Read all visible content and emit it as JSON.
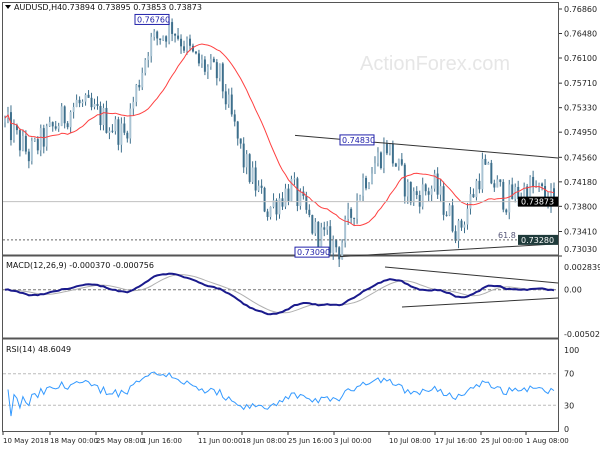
{
  "header": {
    "symbol": "AUDUSD,H4",
    "ohlc": "0.73894 0.73895 0.73853 0.73873"
  },
  "watermark": "ActionForex.com",
  "colors": {
    "bars": "#3d6f8c",
    "ma": "#ff4040",
    "macd": "#1a1a8c",
    "signal": "#b0b0b0",
    "rsi": "#3399ff",
    "trendline": "#333333",
    "current_price_tag": "#000000",
    "fib_tag": "#1f3b3b"
  },
  "chart_data": [
    {
      "type": "candlestick",
      "title": "AUDUSD,H4 0.73894 0.73895 0.73853 0.73873",
      "ylim": [
        0.7303,
        0.7686
      ],
      "y_ticks": [
        "0.76860",
        "0.76480",
        "0.76100",
        "0.75710",
        "0.75330",
        "0.74950",
        "0.74560",
        "0.74180",
        "0.73800",
        "0.73410",
        "0.73030"
      ],
      "x_ticks": [
        "10 May 2018",
        "18 May 00:00",
        "25 May 08:00",
        "1 Jun 16:00",
        "11 Jun 00:00",
        "18 Jun 08:00",
        "25 Jun 16:00",
        "3 Jul 00:00",
        "10 Jul 08:00",
        "17 Jul 16:00",
        "25 Jul 00:00",
        "1 Aug 08:00"
      ],
      "approx_close_path": [
        0.751,
        0.746,
        0.75,
        0.754,
        0.752,
        0.749,
        0.763,
        0.766,
        0.7605,
        0.758,
        0.745,
        0.7375,
        0.741,
        0.734,
        0.7315,
        0.742,
        0.7475,
        0.7395,
        0.741,
        0.734,
        0.744,
        0.739,
        0.741,
        0.7387
      ],
      "annotations": [
        {
          "text": "0.76760",
          "price": 0.7676
        },
        {
          "text": "0.74830",
          "price": 0.7483
        },
        {
          "text": "0.73090",
          "price": 0.7309
        },
        {
          "text": "61.8",
          "price": 0.7328
        }
      ],
      "current_price": {
        "text": "0.73873",
        "value": 0.73873
      },
      "fib_level": {
        "text": "0.73280",
        "value": 0.7328
      },
      "upper_trendline": [
        0.749,
        0.7455
      ],
      "lower_trendline": [
        0.7302,
        0.7322
      ]
    },
    {
      "type": "line",
      "title": "MACD(12,26,9) -0.000370 -0.000756",
      "ylim": [
        -0.005021,
        0.002839
      ],
      "y_ticks": [
        "0.002839",
        "0.00",
        "-0.005021"
      ]
    },
    {
      "type": "line",
      "title": "RSI(14) 48.6049",
      "ylim": [
        0,
        100
      ],
      "y_ticks": [
        "100",
        "70",
        "30",
        "0"
      ]
    }
  ]
}
